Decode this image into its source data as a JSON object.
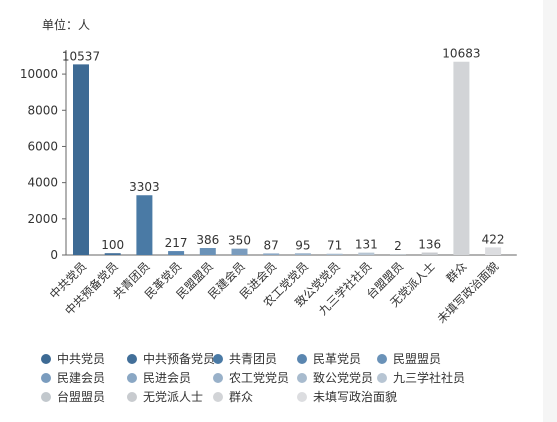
{
  "unit_label": "单位：人",
  "chart_data": {
    "type": "bar",
    "categories": [
      "中共党员",
      "中共预备党员",
      "共青团员",
      "民革党员",
      "民盟盟员",
      "民建会员",
      "民进会员",
      "农工党党员",
      "致公党党员",
      "九三学社社员",
      "台盟盟员",
      "无党派人士",
      "群众",
      "未填写政治面貌"
    ],
    "values": [
      10537,
      100,
      3303,
      217,
      386,
      350,
      87,
      95,
      71,
      131,
      2,
      136,
      10683,
      422
    ],
    "colors": [
      "#3d6a94",
      "#426f99",
      "#4a7aa5",
      "#5a86b0",
      "#6a92b8",
      "#7a9cbe",
      "#8aa7c4",
      "#99b1c9",
      "#a8bbce",
      "#b7c5d3",
      "#c2c8cd",
      "#c8cbcf",
      "#d2d4d7",
      "#dcdde0"
    ],
    "yticks": [
      0,
      2000,
      4000,
      6000,
      8000,
      10000
    ],
    "ylim": [
      0,
      11000
    ],
    "grid": false,
    "legend_position": "bottom"
  }
}
